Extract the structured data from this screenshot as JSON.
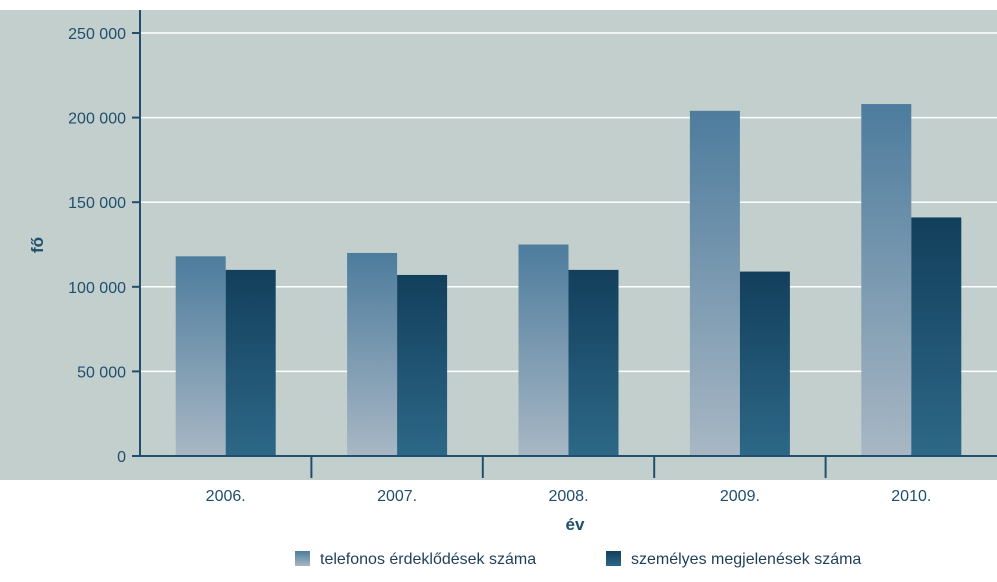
{
  "chart_data": {
    "type": "bar",
    "categories": [
      "2006.",
      "2007.",
      "2008.",
      "2009.",
      "2010."
    ],
    "series": [
      {
        "name": "telefonos érdeklődések száma",
        "values": [
          118000,
          120000,
          125000,
          204000,
          208000
        ]
      },
      {
        "name": "személyes megjelenések száma",
        "values": [
          110000,
          107000,
          110000,
          109000,
          141000
        ]
      }
    ],
    "xlabel": "év",
    "ylabel": "fő",
    "ylim": [
      0,
      250000
    ],
    "yticks": [
      "0",
      "50 000",
      "100 000",
      "150 000",
      "200 000",
      "250 000"
    ],
    "ytick_values": [
      0,
      50000,
      100000,
      150000,
      200000,
      250000
    ],
    "grid": true,
    "legend_position": "bottom",
    "colors": {
      "plot_background": "#c3cfcd",
      "series1_top": "#4d7c9d",
      "series1_bottom": "#a8b7c4",
      "series2_top": "#123f5c",
      "series2_bottom": "#2d6887",
      "axis": "#1f4e6e",
      "grid": "#ffffff"
    }
  }
}
